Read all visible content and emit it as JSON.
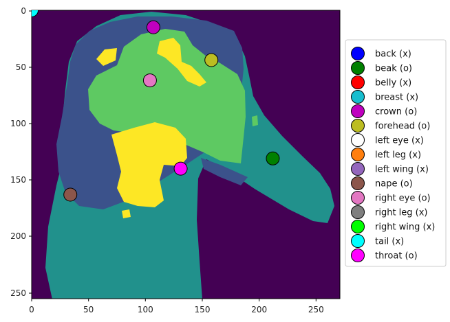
{
  "chart_data": {
    "type": "scatter",
    "background": "segmentation-image",
    "colors": {
      "background": "#440154",
      "region_teal": "#21918c",
      "region_blue": "#3b528b",
      "region_green": "#5ec962",
      "region_yellow": "#fde725"
    },
    "xlim": [
      0,
      271
    ],
    "ylim": [
      255,
      0
    ],
    "xticks": [
      "0",
      "50",
      "100",
      "150",
      "200",
      "250"
    ],
    "yticks": [
      "0",
      "50",
      "100",
      "150",
      "200",
      "250"
    ],
    "grid": false,
    "legend_position": "right",
    "series": [
      {
        "name": "back (x)",
        "color": "#0000ff",
        "visible": false
      },
      {
        "name": "beak (o)",
        "color": "#008000",
        "visible": true,
        "x": 212,
        "y": 131
      },
      {
        "name": "belly (x)",
        "color": "#ff0000",
        "visible": false
      },
      {
        "name": "breast (x)",
        "color": "#17becf",
        "visible": false
      },
      {
        "name": "crown (o)",
        "color": "#bf00bf",
        "visible": true,
        "x": 107,
        "y": 15
      },
      {
        "name": "forehead (o)",
        "color": "#bcbd22",
        "visible": true,
        "x": 158,
        "y": 44
      },
      {
        "name": "left eye (x)",
        "color": "#ffffff",
        "visible": false
      },
      {
        "name": "left leg (x)",
        "color": "#ff7f0e",
        "visible": false
      },
      {
        "name": "left wing (x)",
        "color": "#9467bd",
        "visible": false
      },
      {
        "name": "nape (o)",
        "color": "#8c564b",
        "visible": true,
        "x": 34,
        "y": 163
      },
      {
        "name": "right eye (o)",
        "color": "#e377c2",
        "visible": true,
        "x": 104,
        "y": 62
      },
      {
        "name": "right leg (x)",
        "color": "#7f7f7f",
        "visible": false
      },
      {
        "name": "right wing (x)",
        "color": "#00ff00",
        "visible": false
      },
      {
        "name": "tail (x)",
        "color": "#00ffff",
        "visible": true,
        "x": 0,
        "y": 0
      },
      {
        "name": "throat (o)",
        "color": "#ff00ff",
        "visible": true,
        "x": 131,
        "y": 140
      }
    ]
  }
}
